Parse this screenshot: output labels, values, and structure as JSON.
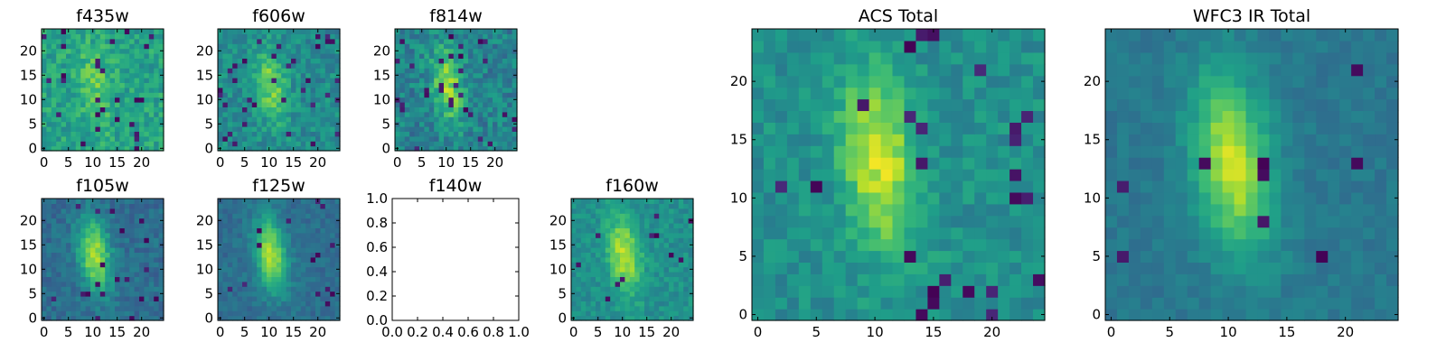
{
  "chart_data": [
    {
      "type": "heatmap",
      "title": "f435w",
      "xticks": [
        "0",
        "5",
        "10",
        "15",
        "20"
      ],
      "yticks": [
        "0",
        "5",
        "10",
        "15",
        "20"
      ],
      "extent": [
        -0.5,
        24.5,
        -0.5,
        24.5
      ],
      "seed": 3,
      "level": 0.58,
      "noise": 0.24,
      "blob": 0.18,
      "dark": 0.06,
      "colormap": "viridis"
    },
    {
      "type": "heatmap",
      "title": "f606w",
      "xticks": [
        "0",
        "5",
        "10",
        "15",
        "20"
      ],
      "yticks": [
        "0",
        "5",
        "10",
        "15",
        "20"
      ],
      "extent": [
        -0.5,
        24.5,
        -0.5,
        24.5
      ],
      "seed": 7,
      "level": 0.48,
      "noise": 0.22,
      "blob": 0.32,
      "dark": 0.04,
      "colormap": "viridis"
    },
    {
      "type": "heatmap",
      "title": "f814w",
      "xticks": [
        "0",
        "5",
        "10",
        "15",
        "20"
      ],
      "yticks": [
        "0",
        "5",
        "10",
        "15",
        "20"
      ],
      "extent": [
        -0.5,
        24.5,
        -0.5,
        24.5
      ],
      "seed": 11,
      "level": 0.44,
      "noise": 0.26,
      "blob": 0.4,
      "dark": 0.05,
      "colormap": "viridis"
    },
    {
      "type": "heatmap",
      "title": "f105w",
      "xticks": [
        "0",
        "5",
        "10",
        "15",
        "20"
      ],
      "yticks": [
        "0",
        "5",
        "10",
        "15",
        "20"
      ],
      "extent": [
        -0.5,
        24.5,
        -0.5,
        24.5
      ],
      "seed": 13,
      "level": 0.36,
      "noise": 0.16,
      "blob": 0.52,
      "dark": 0.02,
      "colormap": "viridis"
    },
    {
      "type": "heatmap",
      "title": "f125w",
      "xticks": [
        "0",
        "5",
        "10",
        "15",
        "20"
      ],
      "yticks": [
        "0",
        "5",
        "10",
        "15",
        "20"
      ],
      "extent": [
        -0.5,
        24.5,
        -0.5,
        24.5
      ],
      "seed": 17,
      "level": 0.36,
      "noise": 0.13,
      "blob": 0.52,
      "dark": 0.02,
      "colormap": "viridis"
    },
    {
      "type": "empty",
      "title": "f140w",
      "xticks": [
        "0.0",
        "0.2",
        "0.4",
        "0.6",
        "0.8",
        "1.0"
      ],
      "yticks": [
        "0.0",
        "0.2",
        "0.4",
        "0.6",
        "0.8",
        "1.0"
      ],
      "extent": [
        0,
        1,
        0,
        1
      ]
    },
    {
      "type": "heatmap",
      "title": "f160w",
      "xticks": [
        "0",
        "5",
        "10",
        "15",
        "20"
      ],
      "yticks": [
        "0",
        "5",
        "10",
        "15",
        "20"
      ],
      "extent": [
        -0.5,
        24.5,
        -0.5,
        24.5
      ],
      "seed": 19,
      "level": 0.5,
      "noise": 0.16,
      "blob": 0.4,
      "dark": 0.02,
      "colormap": "viridis"
    },
    {
      "type": "heatmap",
      "title": "ACS Total",
      "xticks": [
        "0",
        "5",
        "10",
        "15",
        "20"
      ],
      "yticks": [
        "0",
        "5",
        "10",
        "15",
        "20"
      ],
      "extent": [
        -0.5,
        24.5,
        -0.5,
        24.5
      ],
      "seed": 23,
      "level": 0.5,
      "noise": 0.18,
      "blob": 0.42,
      "dark": 0.03,
      "colormap": "viridis"
    },
    {
      "type": "heatmap",
      "title": "WFC3 IR Total",
      "xticks": [
        "0",
        "5",
        "10",
        "15",
        "20"
      ],
      "yticks": [
        "0",
        "5",
        "10",
        "15",
        "20"
      ],
      "extent": [
        -0.5,
        24.5,
        -0.5,
        24.5
      ],
      "seed": 29,
      "level": 0.4,
      "noise": 0.1,
      "blob": 0.52,
      "dark": 0.015,
      "colormap": "viridis"
    }
  ]
}
